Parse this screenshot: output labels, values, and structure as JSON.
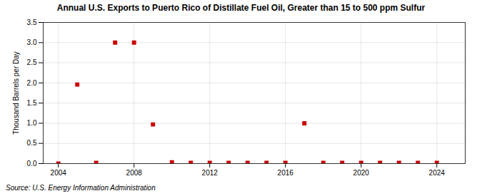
{
  "chart_data": {
    "type": "scatter",
    "title": "Annual U.S. Exports to Puerto Rico of Distillate Fuel Oil, Greater than 15 to 500 ppm Sulfur",
    "ylabel": "Thousand Barrels per Day",
    "source": "Source: U.S. Energy Information Administration",
    "x": [
      2004,
      2005,
      2006,
      2007,
      2008,
      2009,
      2010,
      2011,
      2012,
      2013,
      2014,
      2015,
      2016,
      2017,
      2018,
      2019,
      2020,
      2021,
      2022,
      2023,
      2024
    ],
    "values": [
      0.0,
      1.96,
      0.02,
      3.0,
      3.0,
      0.97,
      0.03,
      0.02,
      0.02,
      0.02,
      0.02,
      0.02,
      0.02,
      1.0,
      0.02,
      0.02,
      0.02,
      0.02,
      0.02,
      0.02,
      0.02
    ],
    "color": "#cc0000",
    "marker": "square",
    "xlim": [
      2003.2,
      2025.5
    ],
    "ylim": [
      0.0,
      3.5
    ],
    "xticks": [
      2004,
      2008,
      2012,
      2016,
      2020,
      2024
    ],
    "yticks": [
      {
        "value": 0,
        "label": "0.0"
      },
      0.5,
      {
        "value": 1,
        "label": "1.0"
      },
      1.5,
      {
        "value": 2,
        "label": "2.0"
      },
      2.5,
      {
        "value": 3,
        "label": "3.0"
      },
      3.5
    ],
    "grid": true
  }
}
